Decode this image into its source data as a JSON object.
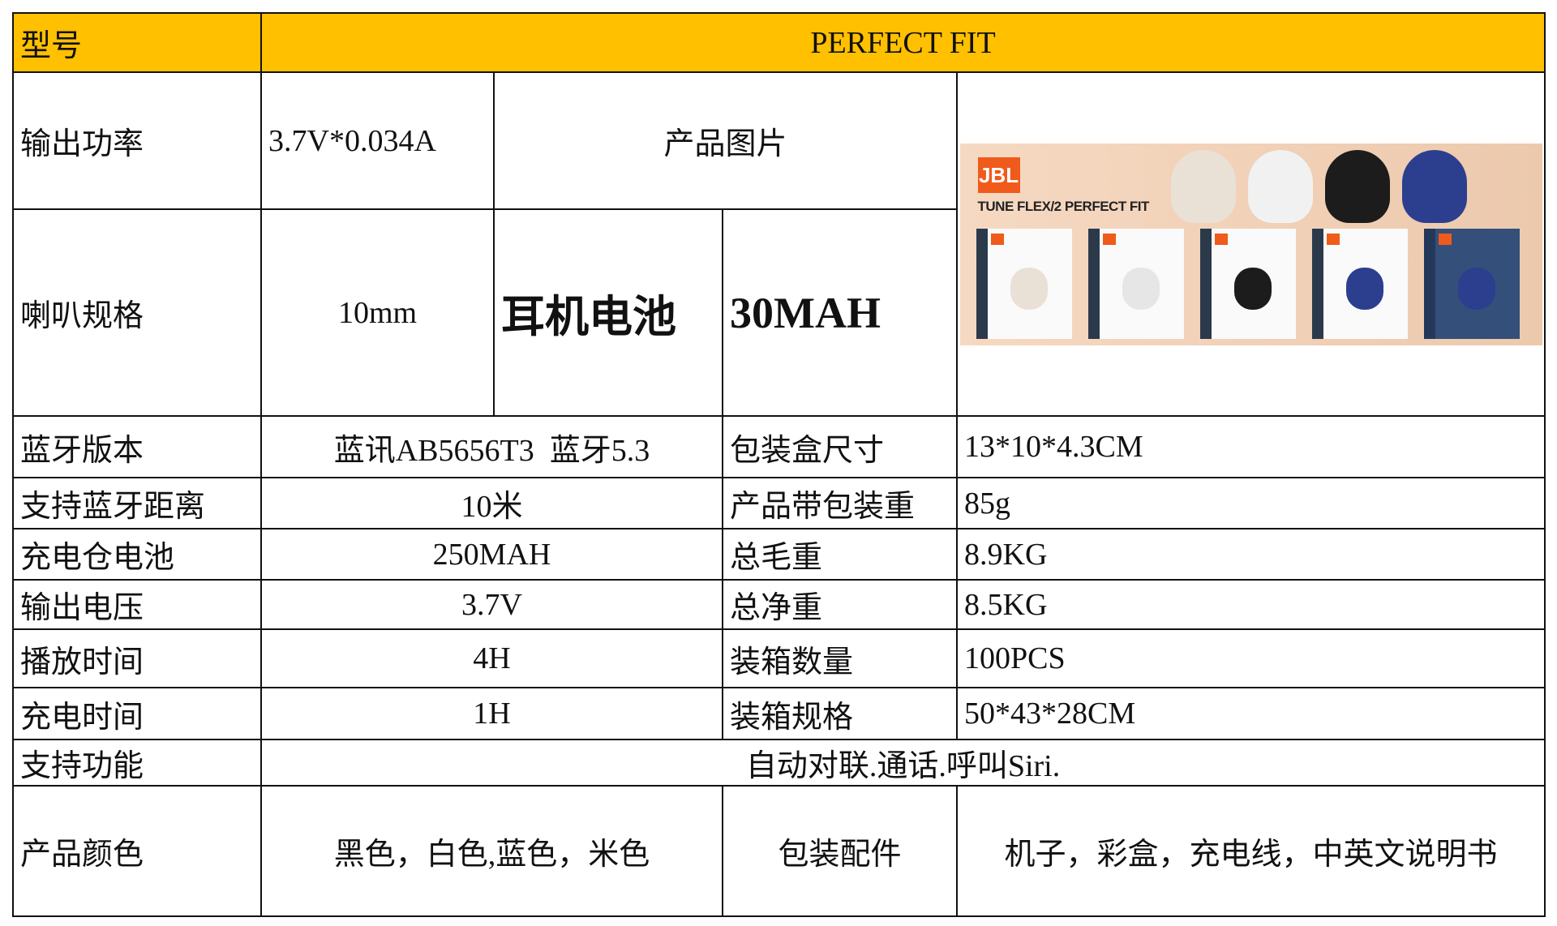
{
  "header": {
    "model_label": "型号",
    "model_value": "PERFECT FIT"
  },
  "specs": {
    "output_power": {
      "label": "输出功率",
      "value": "3.7V*0.034A"
    },
    "product_image_label": "产品图片",
    "speaker": {
      "label": "喇叭规格",
      "value": "10mm"
    },
    "earbud_battery": {
      "label": "耳机电池",
      "value": "30MAH"
    },
    "bluetooth_version": {
      "label": "蓝牙版本",
      "value": "蓝讯AB5656T3  蓝牙5.3"
    },
    "box_size": {
      "label": "包装盒尺寸",
      "value": "13*10*4.3CM"
    },
    "bt_range": {
      "label": "支持蓝牙距离",
      "value": "10米"
    },
    "packed_weight": {
      "label": "产品带包装重",
      "value": "85g"
    },
    "case_battery": {
      "label": "充电仓电池",
      "value": "250MAH"
    },
    "gross_weight": {
      "label": "总毛重",
      "value": "8.9KG"
    },
    "output_voltage": {
      "label": "输出电压",
      "value": "3.7V"
    },
    "net_weight": {
      "label": "总净重",
      "value": "8.5KG"
    },
    "play_time": {
      "label": "播放时间",
      "value": "4H"
    },
    "carton_qty": {
      "label": "装箱数量",
      "value": "100PCS"
    },
    "charge_time": {
      "label": "充电时间",
      "value": "1H"
    },
    "carton_size": {
      "label": "装箱规格",
      "value": "50*43*28CM"
    },
    "functions": {
      "label": "支持功能",
      "value": "自动对联.通话.呼叫Siri."
    },
    "colors": {
      "label": "产品颜色",
      "value": "黑色，白色,蓝色，米色"
    },
    "accessories": {
      "label": "包装配件",
      "value": "机子，彩盒，充电线，中英文说明书"
    }
  },
  "product_photo": {
    "logo": "JBL",
    "brand_text": "TUNE FLEX/2 PERFECT FIT",
    "variant_colors": [
      "#e9e1d6",
      "#f1f1f1",
      "#1c1c1c",
      "#2c3f8f"
    ],
    "header_color": "#FFC000"
  }
}
